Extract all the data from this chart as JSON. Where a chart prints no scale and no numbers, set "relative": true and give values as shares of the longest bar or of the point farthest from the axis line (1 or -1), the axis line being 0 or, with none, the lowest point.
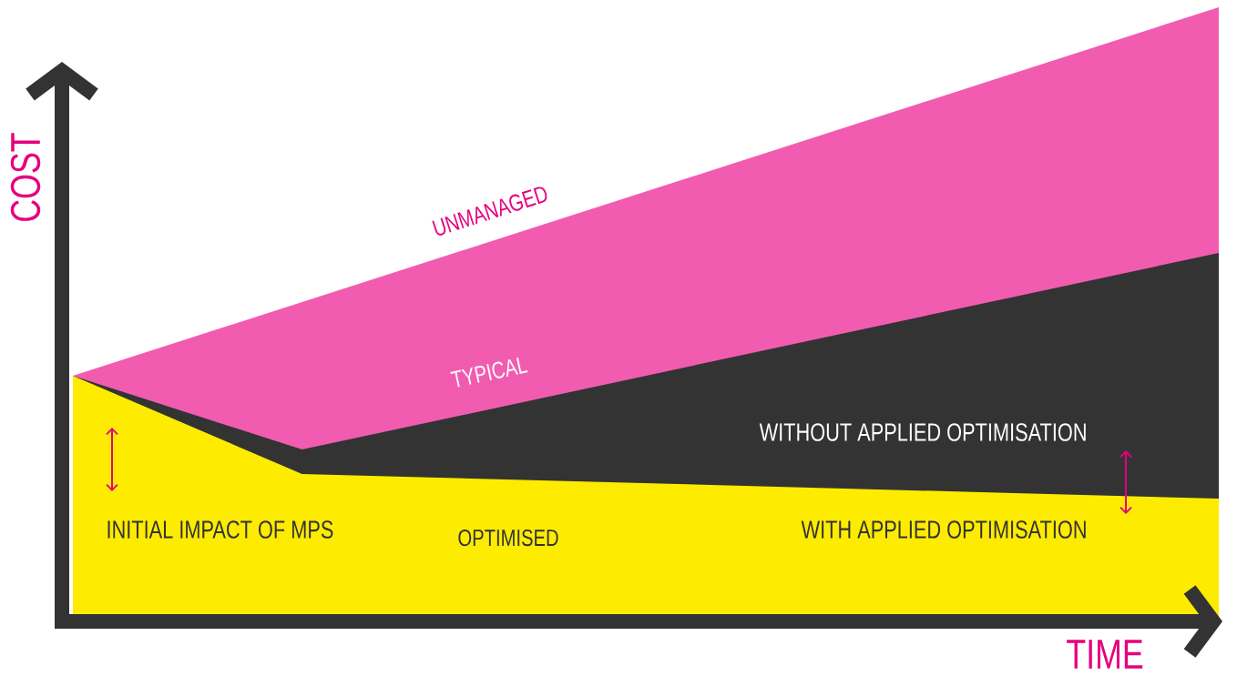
{
  "chart_data": {
    "type": "area",
    "relative": true,
    "xlabel": "TIME",
    "ylabel": "COST",
    "categories": [
      null,
      null,
      null,
      null,
      null,
      null
    ],
    "series": [
      {
        "name": "UNMANAGED",
        "color": "#f25cb0",
        "values": [
          0.4,
          0.52,
          0.64,
          0.76,
          0.88,
          1
        ]
      },
      {
        "name": "TYPICAL",
        "color": "#333333",
        "values": [
          0.4,
          0.28,
          0.36,
          0.44,
          0.52,
          0.6
        ]
      },
      {
        "name": "OPTIMISED",
        "color": "#fdec00",
        "values": [
          0.4,
          0.24,
          0.23,
          0.22,
          0.21,
          0.2
        ]
      }
    ],
    "annotations": [
      "INITIAL IMPACT OF MPS",
      "WITHOUT APPLIED OPTIMISATION",
      "WITH APPLIED OPTIMISATION"
    ]
  }
}
